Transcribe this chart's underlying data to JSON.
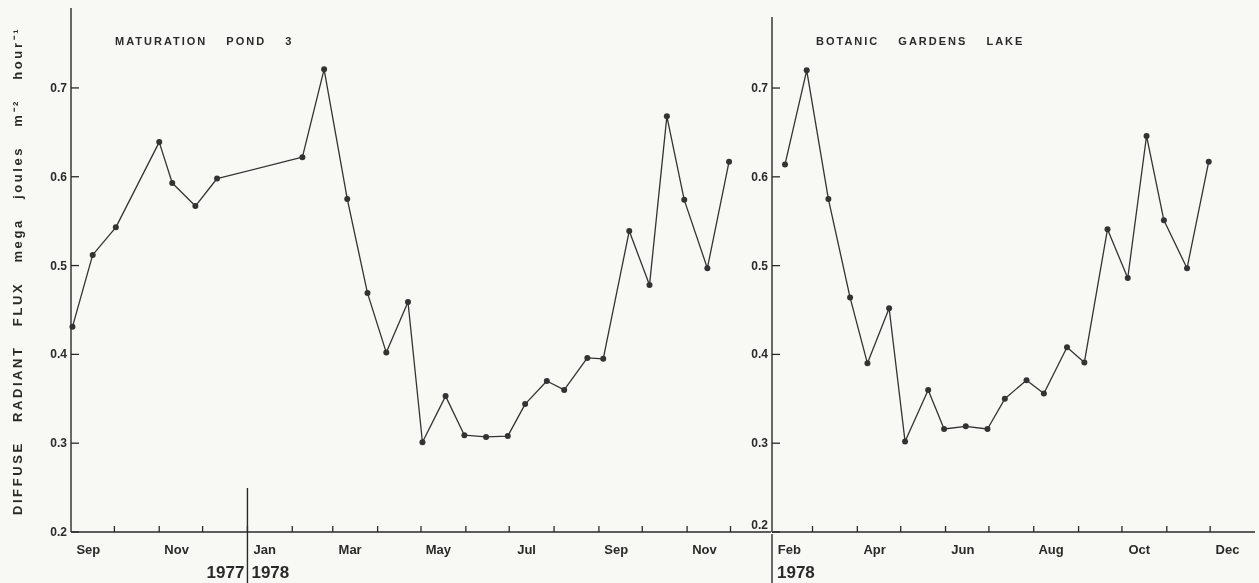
{
  "chart_data": [
    {
      "type": "line",
      "title": "MATURATION POND 3",
      "ylabel": "DIFFUSE RADIANT FLUX mega joules m⁻² hour⁻¹",
      "color": "#333333",
      "marker": "circle",
      "x": [
        "1977-09-02",
        "1977-09-16",
        "1977-10-02",
        "1977-11-01",
        "1977-11-10",
        "1977-11-26",
        "1977-12-11",
        "1978-02-08",
        "1978-02-23",
        "1978-03-11",
        "1978-03-25",
        "1978-04-07",
        "1978-04-22",
        "1978-05-02",
        "1978-05-18",
        "1978-05-31",
        "1978-06-15",
        "1978-06-30",
        "1978-07-12",
        "1978-07-27",
        "1978-08-08",
        "1978-08-24",
        "1978-09-04",
        "1978-09-22",
        "1978-10-06",
        "1978-10-18",
        "1978-10-30",
        "1978-11-15",
        "1978-11-30"
      ],
      "values": [
        0.431,
        0.512,
        0.543,
        0.639,
        0.593,
        0.567,
        0.598,
        0.622,
        0.721,
        0.575,
        0.469,
        0.402,
        0.459,
        0.301,
        0.353,
        0.309,
        0.307,
        0.308,
        0.344,
        0.37,
        0.36,
        0.396,
        0.395,
        0.539,
        0.478,
        0.668,
        0.574,
        0.497,
        0.617
      ],
      "xlim": [
        "1977-09-01",
        "1978-12-29"
      ],
      "ylim": [
        0.2,
        0.79
      ],
      "yticks": [
        0.2,
        0.3,
        0.4,
        0.5,
        0.6,
        0.7
      ],
      "xticks": [
        {
          "value": "1977-10-01",
          "label": null
        },
        {
          "value": "1977-11-01",
          "label": null
        },
        {
          "value": "1977-12-01",
          "label": null
        },
        {
          "value": "1978-01-01",
          "label": null
        },
        {
          "value": "1978-02-01",
          "label": null
        },
        {
          "value": "1978-03-01",
          "label": null
        },
        {
          "value": "1978-04-01",
          "label": null
        },
        {
          "value": "1978-05-01",
          "label": null
        },
        {
          "value": "1978-06-01",
          "label": null
        },
        {
          "value": "1978-07-01",
          "label": null
        },
        {
          "value": "1978-08-01",
          "label": null
        },
        {
          "value": "1978-09-01",
          "label": null
        },
        {
          "value": "1978-10-01",
          "label": null
        },
        {
          "value": "1978-11-01",
          "label": null
        },
        {
          "value": "1978-12-01",
          "label": null
        },
        {
          "value": "1977-09-13",
          "label": "Sep"
        },
        {
          "value": "1977-11-13",
          "label": "Nov"
        },
        {
          "value": "1978-01-13",
          "label": "Jan"
        },
        {
          "value": "1978-03-13",
          "label": "Mar"
        },
        {
          "value": "1978-05-13",
          "label": "May"
        },
        {
          "value": "1978-07-13",
          "label": "Jul"
        },
        {
          "value": "1978-09-13",
          "label": "Sep"
        },
        {
          "value": "1978-11-13",
          "label": "Nov"
        }
      ],
      "ref_lines": [
        {
          "axis": "x",
          "value": "1978-01-01"
        }
      ],
      "annotations": [
        "1977",
        "1978"
      ]
    },
    {
      "type": "line",
      "title": "BOTANIC GARDENS LAKE",
      "color": "#333333",
      "marker": "circle",
      "x": [
        "1978-02-10",
        "1978-02-25",
        "1978-03-12",
        "1978-03-27",
        "1978-04-08",
        "1978-04-23",
        "1978-05-04",
        "1978-05-20",
        "1978-05-31",
        "1978-06-15",
        "1978-06-30",
        "1978-07-12",
        "1978-07-27",
        "1978-08-08",
        "1978-08-24",
        "1978-09-05",
        "1978-09-21",
        "1978-10-05",
        "1978-10-18",
        "1978-10-30",
        "1978-11-15",
        "1978-11-30"
      ],
      "values": [
        0.614,
        0.72,
        0.575,
        0.464,
        0.39,
        0.452,
        0.302,
        0.36,
        0.316,
        0.319,
        0.316,
        0.35,
        0.371,
        0.356,
        0.408,
        0.391,
        0.541,
        0.486,
        0.646,
        0.551,
        0.497,
        0.617
      ],
      "xlim": [
        "1978-02-01",
        "1979-01-01"
      ],
      "ylim": [
        0.2,
        0.78
      ],
      "yticks": [
        0.2,
        0.3,
        0.4,
        0.5,
        0.6,
        0.7
      ],
      "xticks": [
        {
          "value": "1978-03-01",
          "label": null
        },
        {
          "value": "1978-04-01",
          "label": null
        },
        {
          "value": "1978-05-01",
          "label": null
        },
        {
          "value": "1978-06-01",
          "label": null
        },
        {
          "value": "1978-07-01",
          "label": null
        },
        {
          "value": "1978-08-01",
          "label": null
        },
        {
          "value": "1978-09-01",
          "label": null
        },
        {
          "value": "1978-10-01",
          "label": null
        },
        {
          "value": "1978-11-01",
          "label": null
        },
        {
          "value": "1978-12-01",
          "label": null
        },
        {
          "value": "1978-02-13",
          "label": "Feb"
        },
        {
          "value": "1978-04-13",
          "label": "Apr"
        },
        {
          "value": "1978-06-13",
          "label": "Jun"
        },
        {
          "value": "1978-08-13",
          "label": "Aug"
        },
        {
          "value": "1978-10-13",
          "label": "Oct"
        },
        {
          "value": "1978-12-13",
          "label": "Dec"
        }
      ],
      "annotations": [
        "1978"
      ]
    }
  ]
}
